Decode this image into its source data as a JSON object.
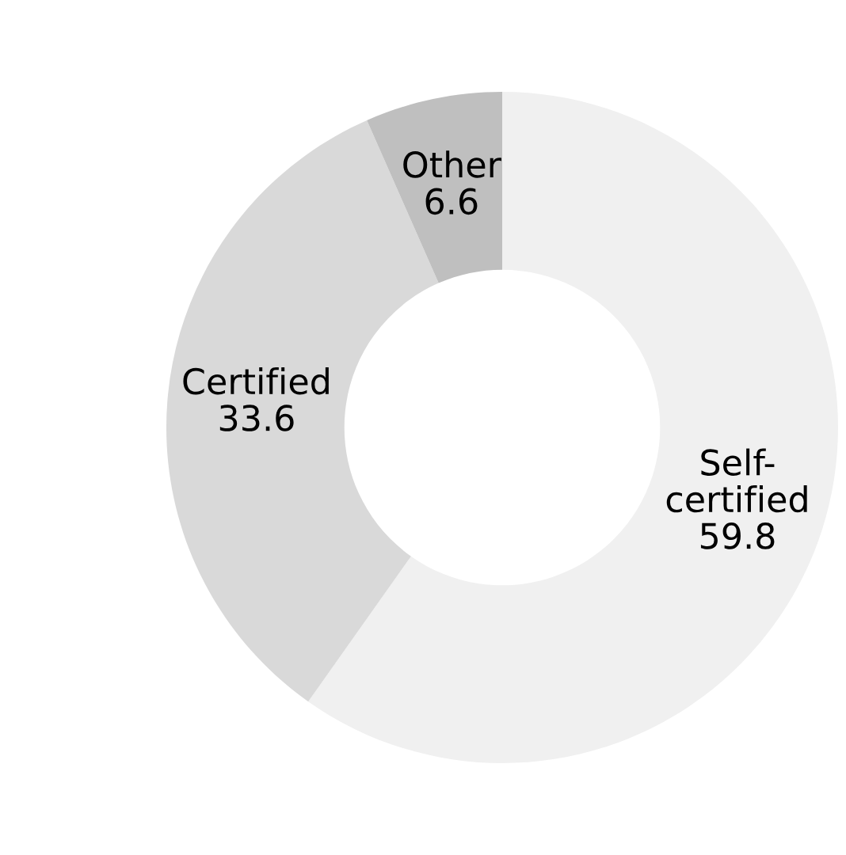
{
  "chart_data": {
    "type": "donut",
    "categories": [
      "Self-\ncertified",
      "Certified",
      "Other"
    ],
    "values": [
      59.8,
      33.6,
      6.6
    ],
    "colors": [
      "#f0f0f0",
      "#d9d9d9",
      "#bfbfbf"
    ],
    "data_labels": true,
    "legend": false
  }
}
